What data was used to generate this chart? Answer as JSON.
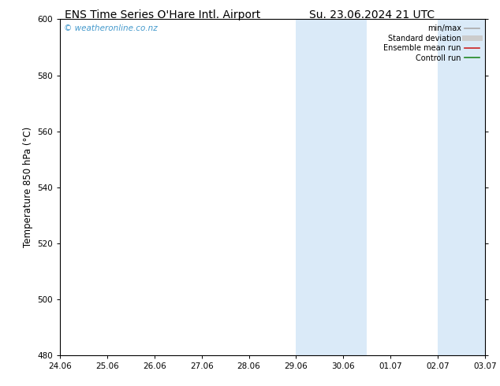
{
  "title_left": "ENS Time Series O'Hare Intl. Airport",
  "title_right": "Su. 23.06.2024 21 UTC",
  "ylabel": "Temperature 850 hPa (°C)",
  "xlabel_ticks": [
    "24.06",
    "25.06",
    "26.06",
    "27.06",
    "28.06",
    "29.06",
    "30.06",
    "01.07",
    "02.07",
    "03.07"
  ],
  "xlim": [
    0,
    9
  ],
  "ylim": [
    480,
    600
  ],
  "yticks": [
    480,
    500,
    520,
    540,
    560,
    580,
    600
  ],
  "watermark": "© weatheronline.co.nz",
  "watermark_color": "#4499cc",
  "shaded_bands": [
    {
      "x_start": 5,
      "x_end": 6.5,
      "color": "#daeaf8"
    },
    {
      "x_start": 8,
      "x_end": 9.0,
      "color": "#daeaf8"
    }
  ],
  "legend_items": [
    {
      "label": "min/max",
      "color": "#aaaaaa",
      "lw": 1.2
    },
    {
      "label": "Standard deviation",
      "color": "#cccccc",
      "lw": 5
    },
    {
      "label": "Ensemble mean run",
      "color": "#cc2222",
      "lw": 1.2
    },
    {
      "label": "Controll run",
      "color": "#228822",
      "lw": 1.2
    }
  ],
  "bg_color": "#ffffff",
  "spine_color": "#000000",
  "title_fontsize": 10,
  "tick_fontsize": 7.5,
  "ylabel_fontsize": 8.5,
  "watermark_fontsize": 7.5,
  "legend_fontsize": 7
}
